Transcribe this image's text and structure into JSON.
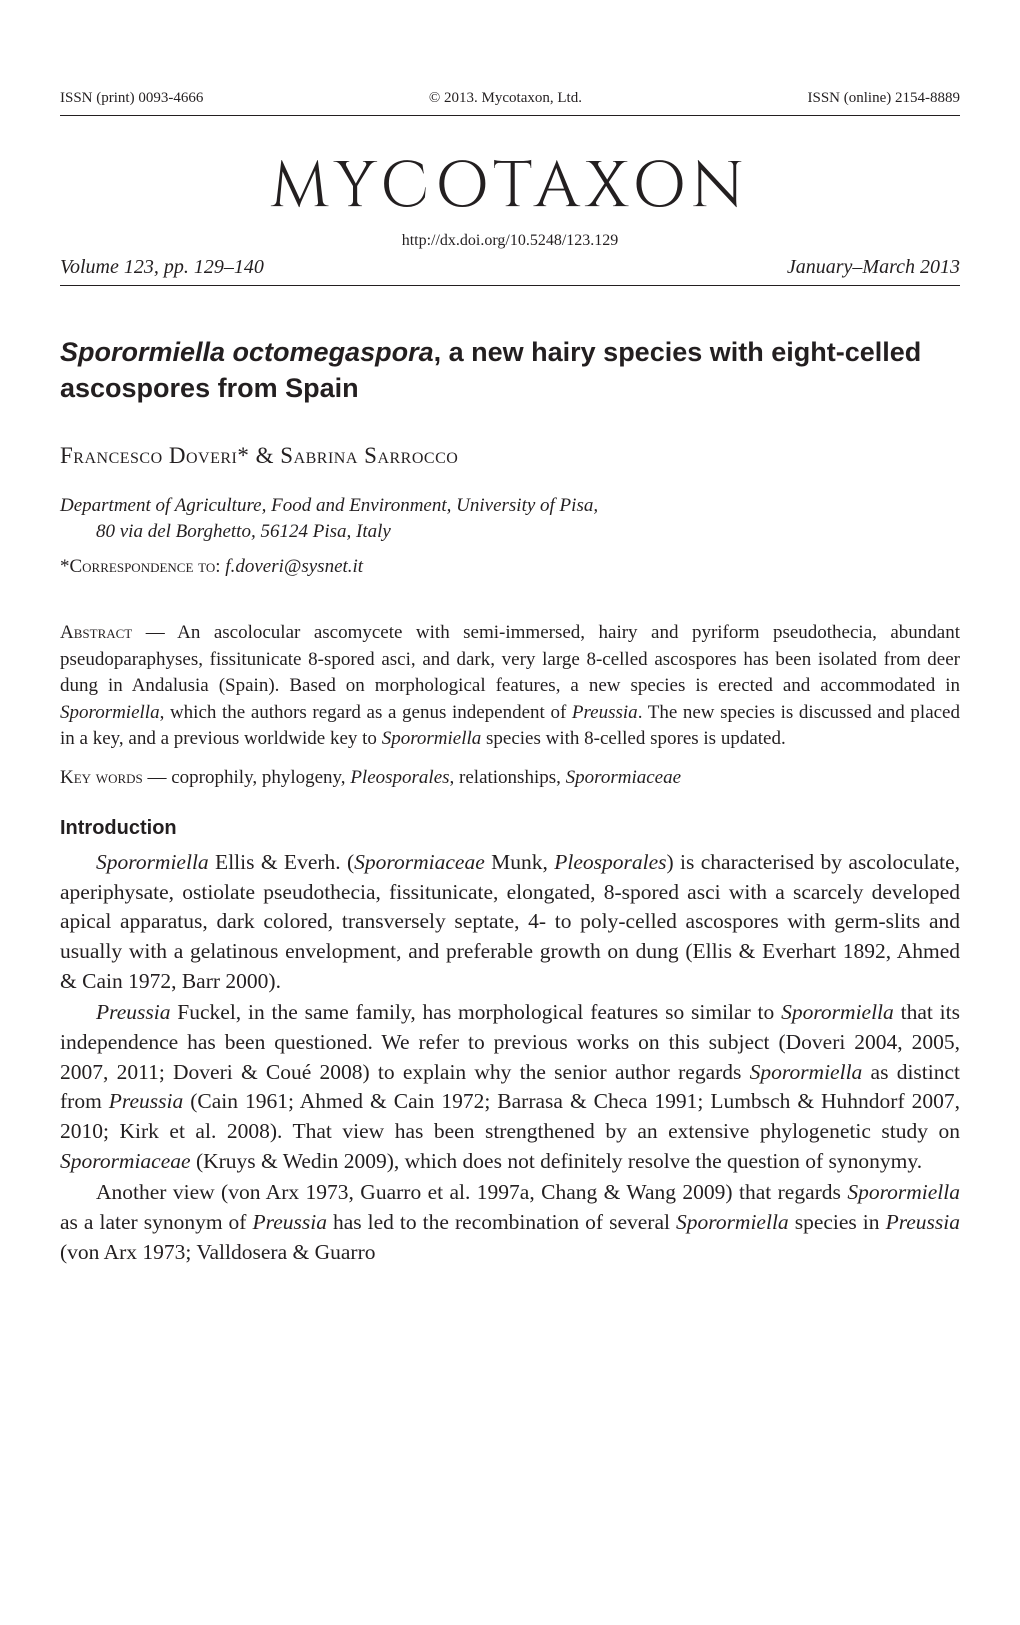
{
  "header": {
    "issn_print": "ISSN (print) 0093-4666",
    "copyright": "© 2013. Mycotaxon, Ltd.",
    "issn_online": "ISSN (online) 2154-8889"
  },
  "journal": {
    "title": "MYCOTAXON",
    "doi": "http://dx.doi.org/10.5248/123.129",
    "volume": "Volume 123, pp. 129–140",
    "date": "January–March 2013"
  },
  "article": {
    "title_species": "Sporormiella octomegaspora",
    "title_rest": ", a new hairy species with eight-celled ascospores from Spain"
  },
  "authors": "Francesco Doveri* & Sabrina Sarrocco",
  "affiliation": {
    "line1": "Department of Agriculture, Food and Environment, University of Pisa,",
    "line2": "80 via del Borghetto, 56124 Pisa, Italy"
  },
  "correspondence": {
    "prefix": "*",
    "label": "Correspondence to: ",
    "email": "f.doveri@sysnet.it"
  },
  "abstract": {
    "label": "Abstract",
    "dash": " — ",
    "text1": "An ascolocular ascomycete with semi-immersed, hairy and pyriform pseudothecia, abundant pseudoparaphyses, fissitunicate 8-spored asci, and dark, very large 8-celled ascospores has been isolated from deer dung in Andalusia (Spain). Based on morphological features, a new species is erected and accommodated in ",
    "genus1": "Sporormiella",
    "text2": ", which the authors regard as a genus independent of ",
    "genus2": "Preussia",
    "text3": ". The new species is discussed and placed in a key, and a previous worldwide key to ",
    "genus3": "Sporormiella",
    "text4": " species with 8-celled spores is updated."
  },
  "keywords": {
    "label": "Key words",
    "dash": " — ",
    "text1": "coprophily, phylogeny, ",
    "term1": "Pleosporales",
    "text2": ", relationships, ",
    "term2": "Sporormiaceae"
  },
  "section_heading": "Introduction",
  "para1": {
    "ital1": "Sporormiella",
    "text1": " Ellis & Everh. (",
    "ital2": "Sporormiaceae",
    "text2": " Munk, ",
    "ital3": "Pleosporales",
    "text3": ") is characterised by ascoloculate, aperiphysate, ostiolate pseudothecia, fissitunicate, elongated, 8-spored asci with a scarcely developed apical apparatus, dark colored, transversely septate, 4- to poly-celled ascospores with germ-slits and usually with a gelatinous envelopment, and preferable growth on dung (Ellis & Everhart 1892, Ahmed & Cain 1972, Barr 2000)."
  },
  "para2": {
    "ital1": "Preussia",
    "text1": " Fuckel, in the same family, has morphological features so similar to ",
    "ital2": "Sporormiella",
    "text2": " that its independence has been questioned. We refer to previous works on this subject (Doveri 2004, 2005, 2007, 2011; Doveri & Coué 2008) to explain why the senior author regards ",
    "ital3": "Sporormiella",
    "text3": " as distinct from ",
    "ital4": "Preussia",
    "text4": " (Cain 1961; Ahmed & Cain 1972; Barrasa & Checa 1991; Lumbsch & Huhndorf 2007, 2010; Kirk et al. 2008). That view has been strengthened by an extensive phylogenetic study on ",
    "ital5": "Sporormiaceae",
    "text5": " (Kruys & Wedin 2009), which does not definitely resolve the question of synonymy."
  },
  "para3": {
    "text1": "Another view (von Arx 1973, Guarro et al. 1997a, Chang & Wang 2009) that regards ",
    "ital1": "Sporormiella",
    "text2": " as a later synonym of ",
    "ital2": "Preussia",
    "text3": " has led to the recombination of several ",
    "ital3": "Sporormiella",
    "text4": " species in ",
    "ital4": "Preussia",
    "text5": " (von Arx 1973; Valldosera & Guarro"
  },
  "colors": {
    "text": "#231f20",
    "background": "#ffffff",
    "rule": "#231f20"
  },
  "typography": {
    "body_font": "Minion Pro, Times New Roman, serif",
    "sans_font": "Myriad Pro, Helvetica Neue, Arial, sans-serif",
    "display_font": "Trajan Pro, Cinzel, serif",
    "journal_title_size": 64,
    "article_title_size": 27,
    "body_size": 21.5,
    "abstract_size": 19
  }
}
